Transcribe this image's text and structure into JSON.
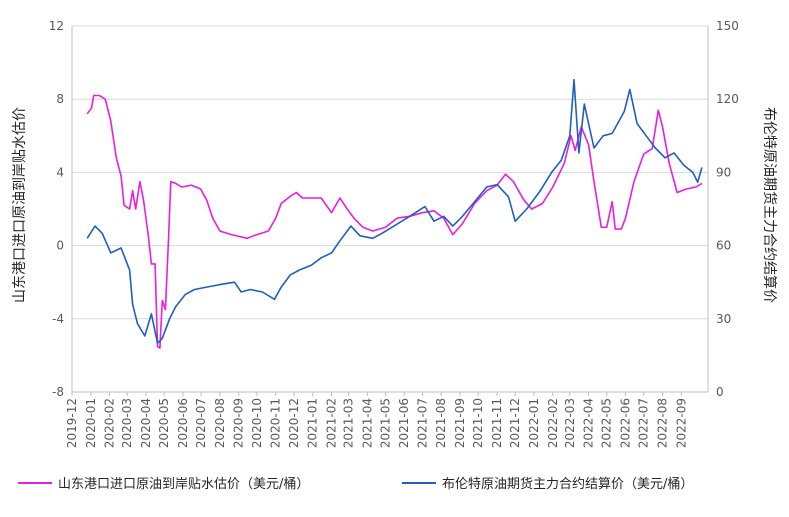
{
  "chart_data": {
    "type": "line",
    "x_categories": [
      "2019-12",
      "2020-01",
      "2020-02",
      "2020-03",
      "2020-04",
      "2020-05",
      "2020-06",
      "2020-07",
      "2020-08",
      "2020-09",
      "2020-10",
      "2020-11",
      "2020-12",
      "2021-01",
      "2021-02",
      "2021-03",
      "2021-04",
      "2021-05",
      "2021-06",
      "2021-07",
      "2021-08",
      "2021-09",
      "2021-10",
      "2021-11",
      "2021-12",
      "2022-01",
      "2022-02",
      "2022-03",
      "2022-04",
      "2022-05",
      "2022-06",
      "2022-07",
      "2022-08",
      "2022-09"
    ],
    "ylabel": "山东港口进口原油到岸贴水估价",
    "y2label": "布伦特原油期货主力合约结算价",
    "ylim": [
      -8,
      12
    ],
    "y2lim": [
      0,
      150
    ],
    "yticks": [
      "-8",
      "-4",
      "0",
      "4",
      "8",
      "12"
    ],
    "y2ticks": [
      "0",
      "30",
      "60",
      "90",
      "120",
      "150"
    ],
    "grid": "horizontal",
    "legend_position": "bottom",
    "series": [
      {
        "name": "山东港口进口原油到岸贴水估价（美元/桶）",
        "axis": "left",
        "color": "#E91EE0",
        "points": [
          [
            "2019-12-26",
            7.2
          ],
          [
            "2020-01-02",
            7.5
          ],
          [
            "2020-01-06",
            8.2
          ],
          [
            "2020-01-15",
            8.2
          ],
          [
            "2020-01-25",
            8.0
          ],
          [
            "2020-02-03",
            6.8
          ],
          [
            "2020-02-12",
            4.8
          ],
          [
            "2020-02-20",
            3.8
          ],
          [
            "2020-02-25",
            2.2
          ],
          [
            "2020-03-05",
            2.0
          ],
          [
            "2020-03-10",
            3.0
          ],
          [
            "2020-03-15",
            2.0
          ],
          [
            "2020-03-22",
            3.5
          ],
          [
            "2020-03-28",
            2.5
          ],
          [
            "2020-04-05",
            0.5
          ],
          [
            "2020-04-10",
            -1.0
          ],
          [
            "2020-04-16",
            -1.0
          ],
          [
            "2020-04-20",
            -5.5
          ],
          [
            "2020-04-24",
            -5.6
          ],
          [
            "2020-04-28",
            -3.0
          ],
          [
            "2020-05-03",
            -3.5
          ],
          [
            "2020-05-08",
            0.2
          ],
          [
            "2020-05-12",
            3.5
          ],
          [
            "2020-05-20",
            3.4
          ],
          [
            "2020-05-30",
            3.2
          ],
          [
            "2020-06-15",
            3.3
          ],
          [
            "2020-06-30",
            3.1
          ],
          [
            "2020-07-10",
            2.5
          ],
          [
            "2020-07-20",
            1.5
          ],
          [
            "2020-08-01",
            0.8
          ],
          [
            "2020-08-20",
            0.6
          ],
          [
            "2020-09-15",
            0.4
          ],
          [
            "2020-10-01",
            0.6
          ],
          [
            "2020-10-20",
            0.8
          ],
          [
            "2020-11-01",
            1.5
          ],
          [
            "2020-11-10",
            2.3
          ],
          [
            "2020-11-25",
            2.7
          ],
          [
            "2020-12-05",
            2.9
          ],
          [
            "2020-12-15",
            2.6
          ],
          [
            "2021-01-15",
            2.6
          ],
          [
            "2021-02-01",
            1.8
          ],
          [
            "2021-02-15",
            2.6
          ],
          [
            "2021-02-25",
            2.1
          ],
          [
            "2021-03-10",
            1.5
          ],
          [
            "2021-03-25",
            1.0
          ],
          [
            "2021-04-10",
            0.8
          ],
          [
            "2021-05-01",
            1.0
          ],
          [
            "2021-05-20",
            1.5
          ],
          [
            "2021-06-10",
            1.6
          ],
          [
            "2021-07-01",
            1.8
          ],
          [
            "2021-07-20",
            1.9
          ],
          [
            "2021-08-05",
            1.5
          ],
          [
            "2021-08-20",
            0.6
          ],
          [
            "2021-09-05",
            1.2
          ],
          [
            "2021-09-25",
            2.3
          ],
          [
            "2021-10-15",
            3.0
          ],
          [
            "2021-11-01",
            3.3
          ],
          [
            "2021-11-15",
            3.9
          ],
          [
            "2021-11-28",
            3.5
          ],
          [
            "2021-12-15",
            2.5
          ],
          [
            "2021-12-28",
            2.0
          ],
          [
            "2022-01-15",
            2.3
          ],
          [
            "2022-02-01",
            3.2
          ],
          [
            "2022-02-20",
            4.5
          ],
          [
            "2022-03-03",
            6.0
          ],
          [
            "2022-03-10",
            5.2
          ],
          [
            "2022-03-20",
            6.5
          ],
          [
            "2022-04-01",
            5.5
          ],
          [
            "2022-04-10",
            3.5
          ],
          [
            "2022-04-22",
            1.0
          ],
          [
            "2022-05-01",
            1.0
          ],
          [
            "2022-05-10",
            2.4
          ],
          [
            "2022-05-15",
            0.9
          ],
          [
            "2022-05-25",
            0.9
          ],
          [
            "2022-06-01",
            1.5
          ],
          [
            "2022-06-15",
            3.5
          ],
          [
            "2022-07-01",
            5.0
          ],
          [
            "2022-07-15",
            5.3
          ],
          [
            "2022-07-25",
            7.4
          ],
          [
            "2022-08-01",
            6.5
          ],
          [
            "2022-08-12",
            4.5
          ],
          [
            "2022-08-25",
            2.9
          ],
          [
            "2022-09-10",
            3.1
          ],
          [
            "2022-09-25",
            3.2
          ],
          [
            "2022-10-05",
            3.4
          ]
        ]
      },
      {
        "name": "布伦特原油期货主力合约结算价（美元/桶）",
        "axis": "right",
        "color": "#1F5FBF",
        "points": [
          [
            "2019-12-26",
            63
          ],
          [
            "2020-01-08",
            68
          ],
          [
            "2020-01-20",
            65
          ],
          [
            "2020-02-03",
            57
          ],
          [
            "2020-02-20",
            59
          ],
          [
            "2020-03-05",
            50
          ],
          [
            "2020-03-10",
            36
          ],
          [
            "2020-03-18",
            28
          ],
          [
            "2020-03-30",
            23
          ],
          [
            "2020-04-10",
            32
          ],
          [
            "2020-04-20",
            20
          ],
          [
            "2020-04-28",
            22
          ],
          [
            "2020-05-10",
            30
          ],
          [
            "2020-05-20",
            35
          ],
          [
            "2020-06-05",
            40
          ],
          [
            "2020-06-20",
            42
          ],
          [
            "2020-07-10",
            43
          ],
          [
            "2020-08-01",
            44
          ],
          [
            "2020-08-25",
            45
          ],
          [
            "2020-09-05",
            41
          ],
          [
            "2020-09-20",
            42
          ],
          [
            "2020-10-10",
            41
          ],
          [
            "2020-10-30",
            38
          ],
          [
            "2020-11-10",
            43
          ],
          [
            "2020-11-25",
            48
          ],
          [
            "2020-12-10",
            50
          ],
          [
            "2020-12-30",
            52
          ],
          [
            "2021-01-15",
            55
          ],
          [
            "2021-02-01",
            57
          ],
          [
            "2021-02-15",
            62
          ],
          [
            "2021-03-05",
            68
          ],
          [
            "2021-03-20",
            64
          ],
          [
            "2021-04-10",
            63
          ],
          [
            "2021-04-25",
            65
          ],
          [
            "2021-05-15",
            68
          ],
          [
            "2021-06-10",
            72
          ],
          [
            "2021-07-05",
            76
          ],
          [
            "2021-07-20",
            70
          ],
          [
            "2021-08-05",
            72
          ],
          [
            "2021-08-20",
            68
          ],
          [
            "2021-09-05",
            72
          ],
          [
            "2021-09-25",
            78
          ],
          [
            "2021-10-15",
            84
          ],
          [
            "2021-11-01",
            85
          ],
          [
            "2021-11-20",
            80
          ],
          [
            "2021-12-01",
            70
          ],
          [
            "2021-12-20",
            75
          ],
          [
            "2022-01-10",
            82
          ],
          [
            "2022-01-30",
            90
          ],
          [
            "2022-02-15",
            95
          ],
          [
            "2022-03-01",
            105
          ],
          [
            "2022-03-08",
            128
          ],
          [
            "2022-03-16",
            98
          ],
          [
            "2022-03-25",
            118
          ],
          [
            "2022-04-10",
            100
          ],
          [
            "2022-04-25",
            105
          ],
          [
            "2022-05-10",
            106
          ],
          [
            "2022-05-30",
            115
          ],
          [
            "2022-06-08",
            124
          ],
          [
            "2022-06-20",
            110
          ],
          [
            "2022-07-05",
            105
          ],
          [
            "2022-07-20",
            100
          ],
          [
            "2022-08-05",
            96
          ],
          [
            "2022-08-20",
            98
          ],
          [
            "2022-09-05",
            93
          ],
          [
            "2022-09-20",
            90
          ],
          [
            "2022-09-28",
            86
          ],
          [
            "2022-10-05",
            92
          ]
        ]
      }
    ]
  }
}
